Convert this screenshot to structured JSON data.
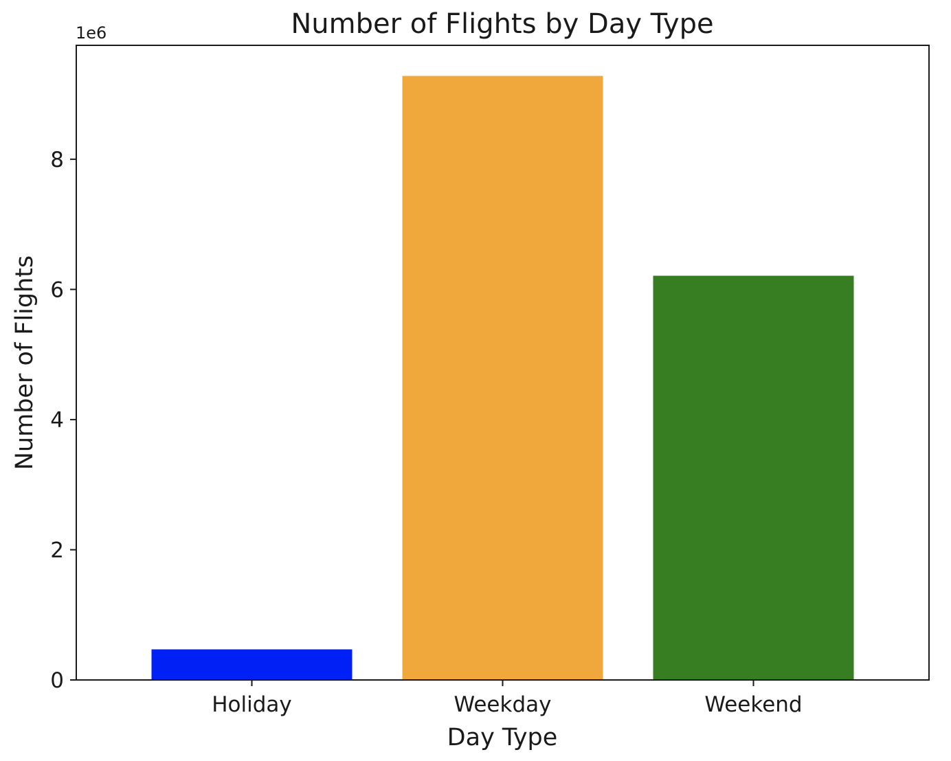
{
  "chart_data": {
    "type": "bar",
    "title": "Number of Flights by Day Type",
    "xlabel": "Day Type",
    "ylabel": "Number of Flights",
    "y_scale_label": "1e6",
    "categories": [
      "Holiday",
      "Weekday",
      "Weekend"
    ],
    "values": [
      470000,
      9280000,
      6210000
    ],
    "colors": [
      "#0020f5",
      "#f0a73c",
      "#377e22"
    ],
    "ylim": [
      0,
      9750000
    ],
    "yticks": [
      0,
      2000000,
      4000000,
      6000000,
      8000000
    ],
    "ytick_labels": [
      "0",
      "2",
      "4",
      "6",
      "8"
    ],
    "grid": false,
    "legend": "none"
  }
}
